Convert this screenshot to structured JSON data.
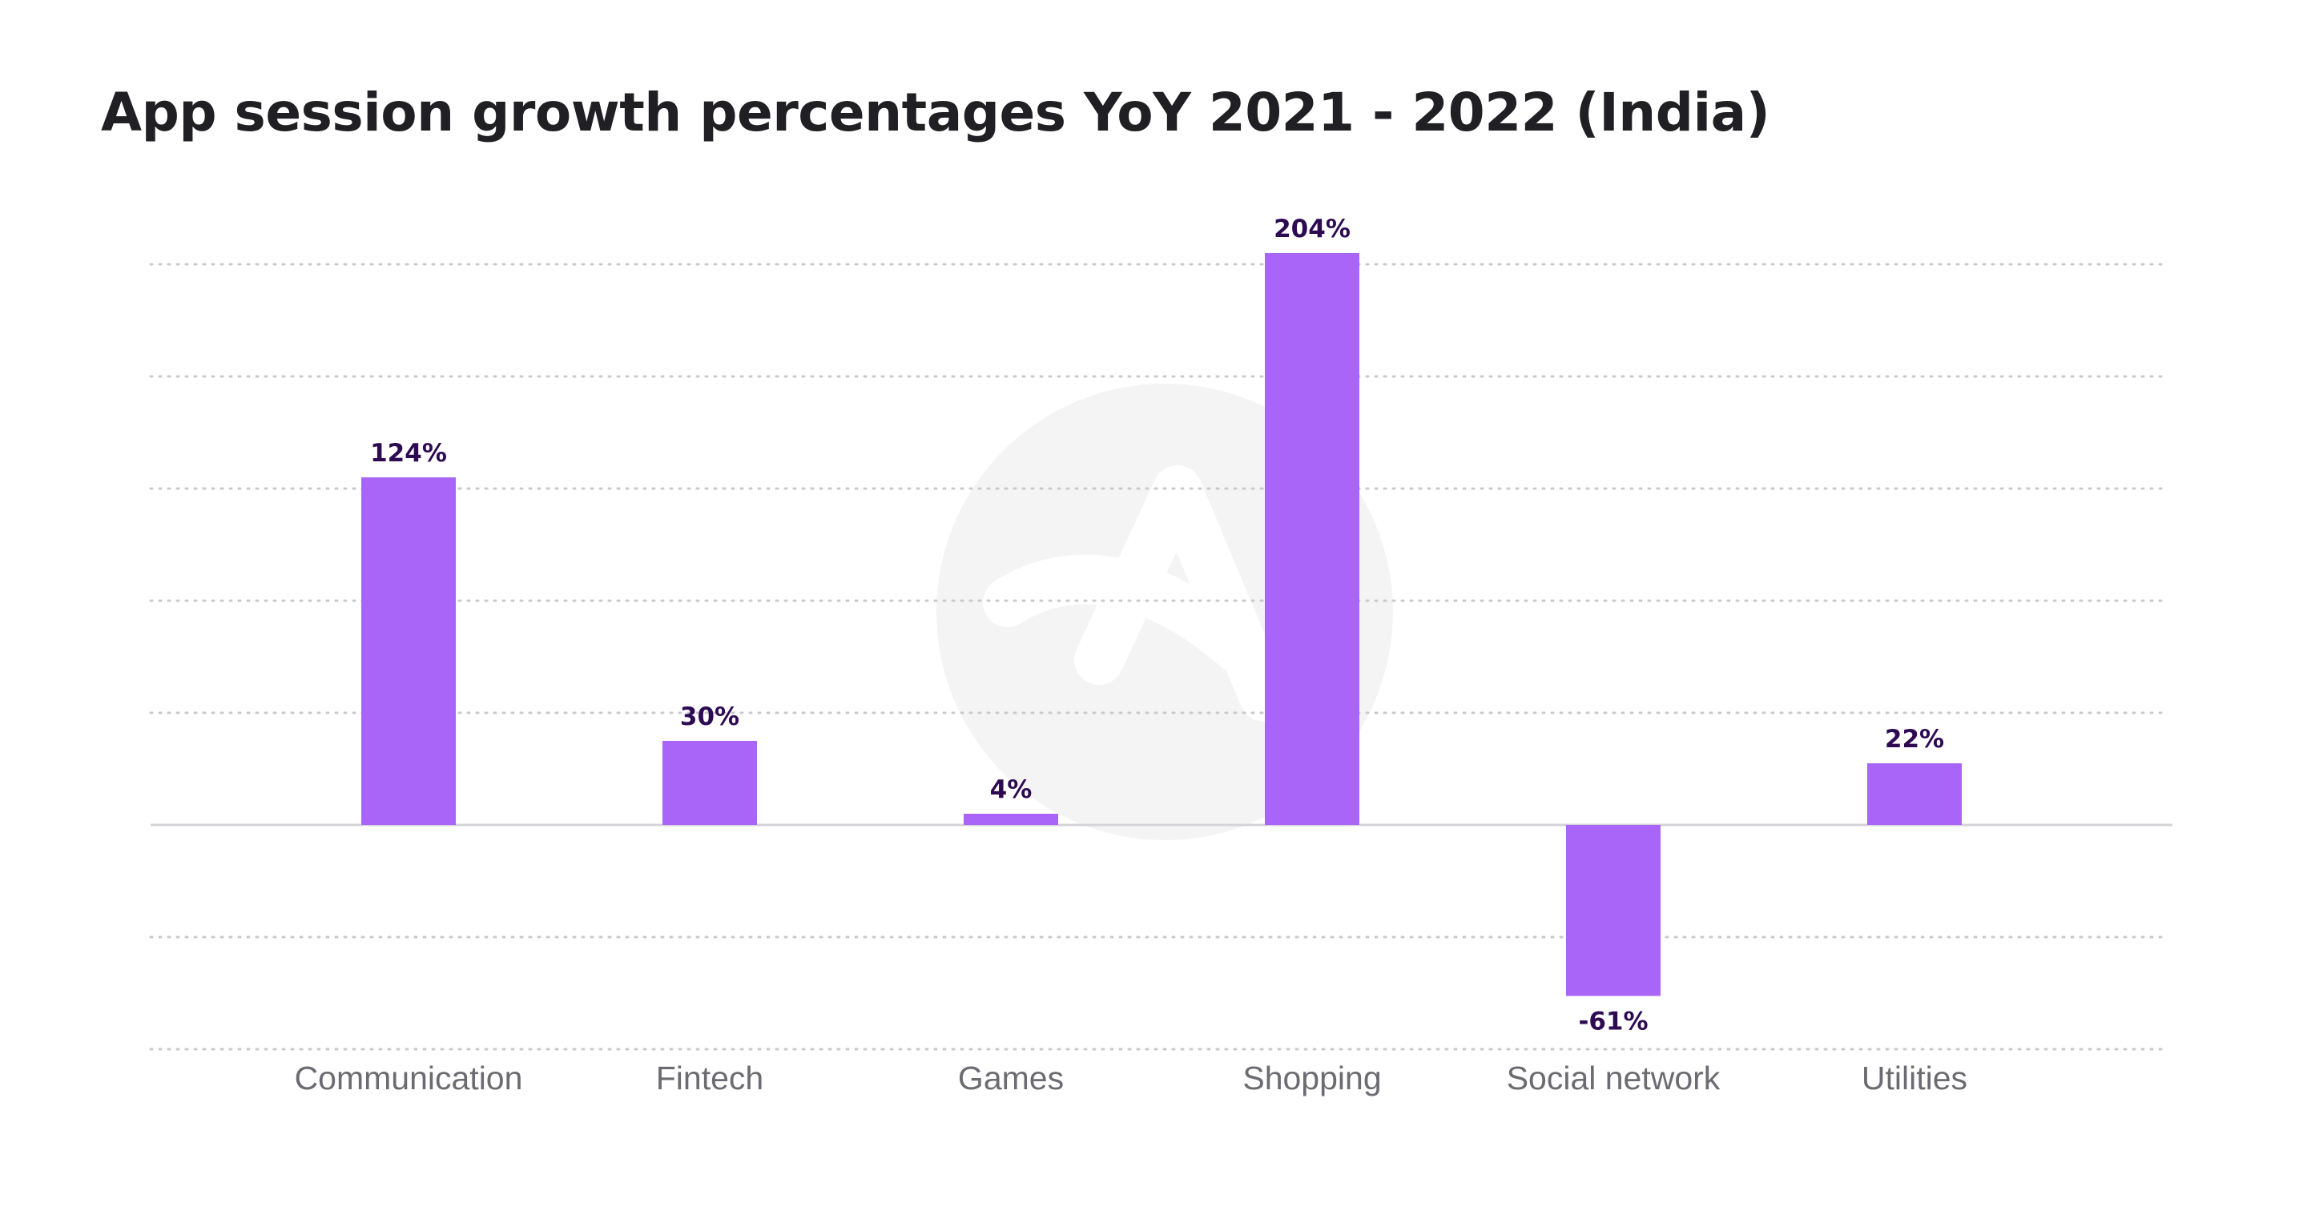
{
  "title": "App session growth percentages YoY 2021 - 2022 (India)",
  "colors": {
    "bar": "#a865f8",
    "value_label": "#2d0a52",
    "category_label": "#6b6b72",
    "title": "#1f1f24",
    "watermark": "#f4f4f5"
  },
  "watermark_icon": "adjust-logo-icon",
  "chart_data": {
    "type": "bar",
    "title": "App session growth percentages YoY 2021 - 2022 (India)",
    "categories": [
      "Communication",
      "Fintech",
      "Games",
      "Shopping",
      "Social network",
      "Utilities"
    ],
    "values": [
      124,
      30,
      4,
      204,
      -61,
      22
    ],
    "value_labels": [
      "124%",
      "30%",
      "4%",
      "204%",
      "-61%",
      "22%"
    ],
    "unit": "%",
    "ylim": [
      -80,
      200
    ],
    "gridline_values": [
      -80,
      -40,
      0,
      40,
      80,
      120,
      160,
      200
    ],
    "grid": true,
    "xlabel": "",
    "ylabel": "",
    "legend": "none"
  }
}
